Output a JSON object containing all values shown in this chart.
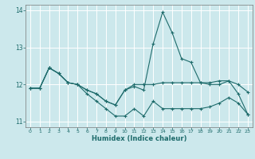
{
  "xlabel": "Humidex (Indice chaleur)",
  "bg_color": "#cce8ec",
  "grid_color": "#ffffff",
  "line_color": "#1e6b6b",
  "xlim": [
    -0.5,
    23.5
  ],
  "ylim": [
    10.85,
    14.15
  ],
  "yticks": [
    11,
    12,
    13,
    14
  ],
  "xticks": [
    0,
    1,
    2,
    3,
    4,
    5,
    6,
    7,
    8,
    9,
    10,
    11,
    12,
    13,
    14,
    15,
    16,
    17,
    18,
    19,
    20,
    21,
    22,
    23
  ],
  "series": [
    {
      "x": [
        0,
        1,
        2,
        3,
        4,
        5,
        6,
        7,
        8,
        9,
        10,
        11,
        12,
        13,
        14,
        15,
        16,
        17,
        18,
        19,
        20,
        21,
        22,
        23
      ],
      "y": [
        11.9,
        11.9,
        12.45,
        12.3,
        12.05,
        12.0,
        11.85,
        11.75,
        11.55,
        11.45,
        11.85,
        11.95,
        11.85,
        13.1,
        13.95,
        13.4,
        12.7,
        12.6,
        12.05,
        12.0,
        12.0,
        12.1,
        11.75,
        11.2
      ]
    },
    {
      "x": [
        0,
        1,
        2,
        3,
        4,
        5,
        6,
        7,
        8,
        9,
        10,
        11,
        12,
        13,
        14,
        15,
        16,
        17,
        18,
        19,
        20,
        21,
        22,
        23
      ],
      "y": [
        11.9,
        11.9,
        12.45,
        12.3,
        12.05,
        12.0,
        11.85,
        11.75,
        11.55,
        11.45,
        11.85,
        12.0,
        12.0,
        12.0,
        12.05,
        12.05,
        12.05,
        12.05,
        12.05,
        12.05,
        12.1,
        12.1,
        12.0,
        11.8
      ]
    },
    {
      "x": [
        0,
        1,
        2,
        3,
        4,
        5,
        6,
        7,
        8,
        9,
        10,
        11,
        12,
        13,
        14,
        15,
        16,
        17,
        18,
        19,
        20,
        21,
        22,
        23
      ],
      "y": [
        11.9,
        11.9,
        12.45,
        12.3,
        12.05,
        12.0,
        11.75,
        11.55,
        11.35,
        11.15,
        11.15,
        11.35,
        11.15,
        11.55,
        11.35,
        11.35,
        11.35,
        11.35,
        11.35,
        11.4,
        11.5,
        11.65,
        11.5,
        11.2
      ]
    }
  ]
}
